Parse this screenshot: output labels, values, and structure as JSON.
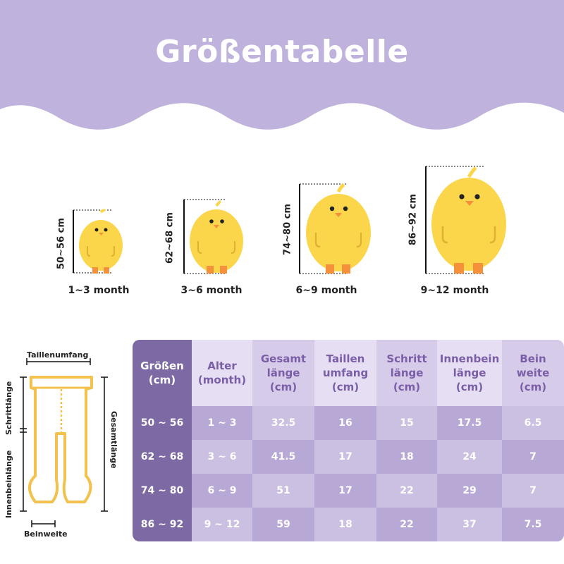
{
  "title": "Größentabelle",
  "colors": {
    "banner": "#bfb2dc",
    "chick_yellow": "#fbd54a",
    "chick_feet": "#f4913a",
    "table_dark": "#7d6aa5",
    "diagram_line": "#f2c14e"
  },
  "sizes": [
    {
      "height": "50~56 cm",
      "age": "1~3 month"
    },
    {
      "height": "62~68 cm",
      "age": "3~6 month"
    },
    {
      "height": "74~80 cm",
      "age": "6~9 month"
    },
    {
      "height": "86~92 cm",
      "age": "9~12 month"
    }
  ],
  "diagram": {
    "waist": "Taillenumfang",
    "crotch": "Schrittlänge",
    "inseam": "Innenbeinlänge",
    "total": "Gesamtlänge",
    "legwidth": "Beinweite"
  },
  "table": {
    "headers": [
      "Größen\n(cm)",
      "Alter\n(month)",
      "Gesamt\nlänge\n(cm)",
      "Taillen\numfang\n(cm)",
      "Schritt\nlänge\n(cm)",
      "Innenbein\nlänge\n(cm)",
      "Bein\nweite\n(cm)"
    ],
    "rows": [
      [
        "50 ~ 56",
        "1 ~ 3",
        "32.5",
        "16",
        "15",
        "17.5",
        "6.5"
      ],
      [
        "62 ~ 68",
        "3 ~ 6",
        "41.5",
        "17",
        "18",
        "24",
        "7"
      ],
      [
        "74 ~ 80",
        "6 ~ 9",
        "51",
        "17",
        "22",
        "29",
        "7"
      ],
      [
        "86 ~ 92",
        "9 ~ 12",
        "59",
        "18",
        "22",
        "37",
        "7.5"
      ]
    ]
  }
}
